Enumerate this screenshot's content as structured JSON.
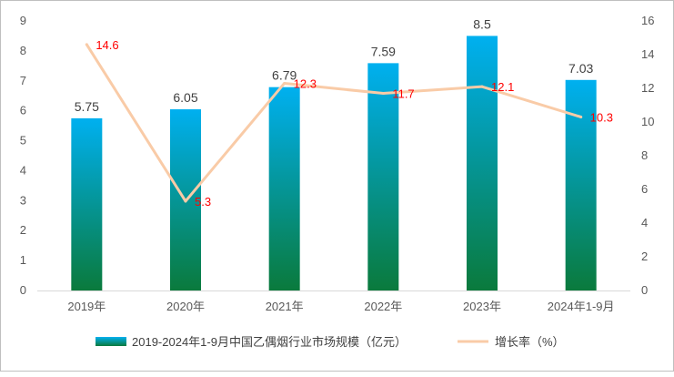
{
  "chart_data": {
    "type": "bar",
    "categories": [
      "2019年",
      "2020年",
      "2021年",
      "2022年",
      "2023年",
      "2024年1-9月"
    ],
    "series": [
      {
        "name": "2019-2024年1-9月中国乙偶烟行业市场规模（亿元）",
        "type": "bar",
        "axis": "left",
        "values": [
          5.75,
          6.05,
          6.79,
          7.59,
          8.5,
          7.03
        ],
        "labels": [
          "5.75",
          "6.05",
          "6.79",
          "7.59",
          "8.5",
          "7.03"
        ]
      },
      {
        "name": "增长率（%）",
        "type": "line",
        "axis": "right",
        "values": [
          14.6,
          5.3,
          12.3,
          11.7,
          12.1,
          10.3
        ],
        "labels": [
          "14.6",
          "5.3",
          "12.3",
          "11.7",
          "12.1",
          "10.3"
        ]
      }
    ],
    "y_left": {
      "ylim": [
        0,
        9
      ],
      "ticks": [
        "0",
        "1",
        "2",
        "3",
        "4",
        "5",
        "6",
        "7",
        "8",
        "9"
      ]
    },
    "y_right": {
      "ylim": [
        0,
        16
      ],
      "ticks": [
        "0",
        "2",
        "4",
        "6",
        "8",
        "10",
        "12",
        "14",
        "16"
      ]
    },
    "legend_position": "bottom",
    "grid": false,
    "colors": {
      "bar_top": "#00b0f0",
      "bar_bottom": "#0a7a3c",
      "line": "#f9cba7",
      "rate_label": "#ff0000",
      "bar_label": "#404040",
      "axis_text": "#595959"
    }
  }
}
